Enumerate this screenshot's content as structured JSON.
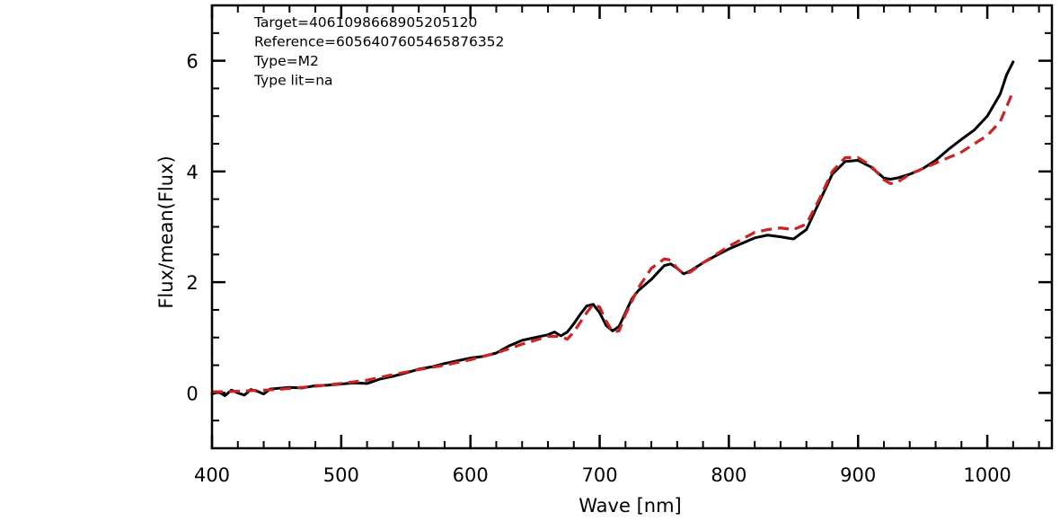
{
  "chart_data": {
    "type": "line",
    "xlabel": "Wave [nm]",
    "ylabel": "Flux/mean(Flux)",
    "xlim": [
      400,
      1050
    ],
    "ylim": [
      -1,
      7
    ],
    "x_ticks": [
      400,
      500,
      600,
      700,
      800,
      900,
      1000
    ],
    "y_ticks": [
      0,
      2,
      4,
      6
    ],
    "x_minor_step": 20,
    "y_minor_step": 0.5,
    "grid": false,
    "annotations": [
      "Target=4061098668905205120",
      "Reference=6056407605465876352",
      "Type=M2",
      "Type lit=na"
    ],
    "series": [
      {
        "style": "solid",
        "color": "#000000",
        "x": [
          400,
          405,
          410,
          415,
          420,
          425,
          430,
          435,
          440,
          445,
          450,
          460,
          470,
          480,
          490,
          500,
          510,
          520,
          530,
          540,
          550,
          560,
          570,
          580,
          590,
          600,
          610,
          620,
          630,
          640,
          650,
          660,
          665,
          670,
          675,
          680,
          685,
          690,
          695,
          700,
          705,
          710,
          715,
          720,
          725,
          730,
          740,
          750,
          755,
          760,
          765,
          770,
          780,
          790,
          800,
          810,
          820,
          830,
          840,
          850,
          860,
          870,
          880,
          890,
          900,
          910,
          920,
          925,
          930,
          940,
          950,
          960,
          970,
          980,
          990,
          1000,
          1010,
          1015,
          1020
        ],
        "y": [
          -0.02,
          0.02,
          -0.05,
          0.05,
          0.0,
          -0.04,
          0.06,
          0.03,
          -0.02,
          0.07,
          0.08,
          0.1,
          0.09,
          0.13,
          0.14,
          0.16,
          0.18,
          0.17,
          0.25,
          0.3,
          0.36,
          0.43,
          0.47,
          0.53,
          0.58,
          0.63,
          0.66,
          0.72,
          0.85,
          0.95,
          1.0,
          1.05,
          1.1,
          1.03,
          1.1,
          1.25,
          1.42,
          1.57,
          1.6,
          1.45,
          1.22,
          1.12,
          1.2,
          1.45,
          1.7,
          1.85,
          2.05,
          2.3,
          2.33,
          2.25,
          2.15,
          2.2,
          2.35,
          2.48,
          2.6,
          2.7,
          2.8,
          2.85,
          2.82,
          2.78,
          2.95,
          3.45,
          3.95,
          4.18,
          4.2,
          4.08,
          3.88,
          3.86,
          3.88,
          3.95,
          4.05,
          4.2,
          4.4,
          4.58,
          4.75,
          5.0,
          5.4,
          5.75,
          5.98
        ]
      },
      {
        "style": "dashed",
        "color": "#cc2222",
        "x": [
          400,
          410,
          420,
          430,
          440,
          450,
          460,
          480,
          500,
          520,
          540,
          560,
          580,
          600,
          620,
          640,
          660,
          670,
          675,
          680,
          690,
          695,
          700,
          705,
          710,
          715,
          720,
          730,
          740,
          750,
          755,
          760,
          765,
          770,
          780,
          800,
          820,
          830,
          840,
          850,
          860,
          870,
          880,
          890,
          900,
          910,
          920,
          925,
          930,
          940,
          960,
          980,
          1000,
          1010,
          1020
        ],
        "y": [
          0.02,
          0.02,
          0.03,
          0.04,
          0.05,
          0.06,
          0.08,
          0.12,
          0.17,
          0.23,
          0.33,
          0.42,
          0.5,
          0.6,
          0.72,
          0.88,
          1.02,
          1.02,
          0.97,
          1.1,
          1.45,
          1.6,
          1.55,
          1.3,
          1.1,
          1.12,
          1.42,
          1.9,
          2.25,
          2.42,
          2.4,
          2.25,
          2.15,
          2.18,
          2.35,
          2.65,
          2.9,
          2.95,
          2.98,
          2.95,
          3.05,
          3.5,
          4.0,
          4.25,
          4.25,
          4.1,
          3.85,
          3.78,
          3.8,
          3.95,
          4.15,
          4.35,
          4.65,
          4.9,
          5.45
        ]
      }
    ]
  }
}
